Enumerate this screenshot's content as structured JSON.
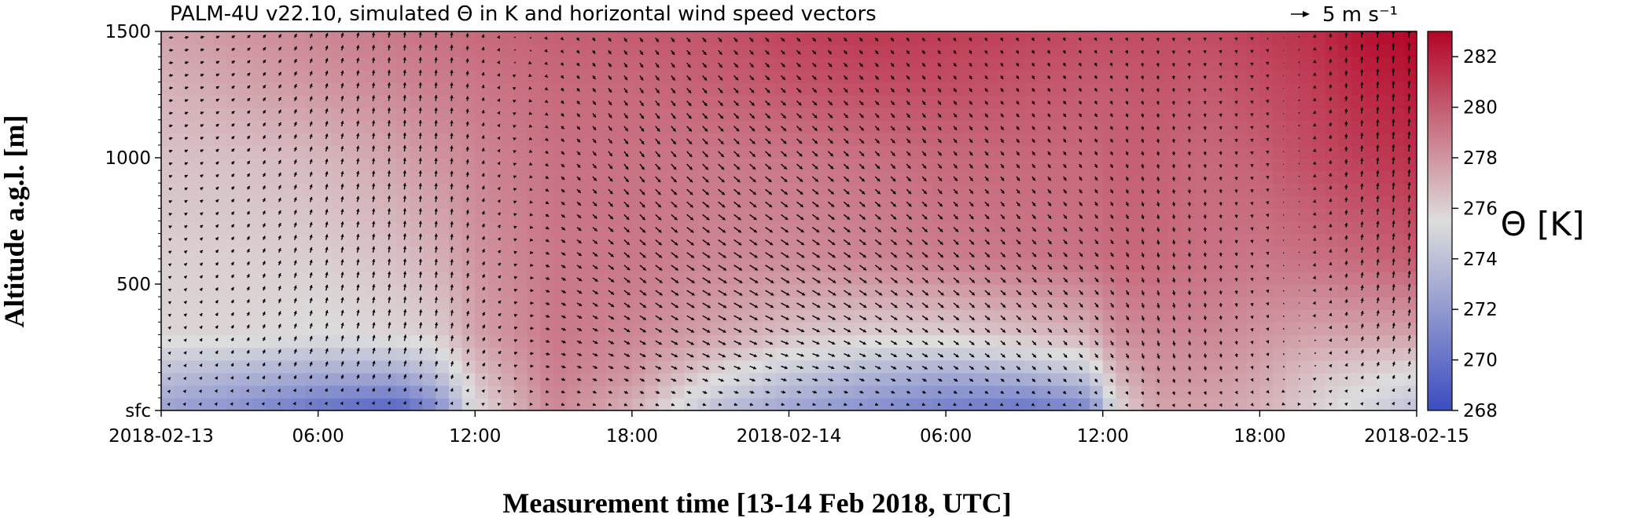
{
  "chart_data": {
    "type": "heatmap",
    "title": "PALM-4U v22.10, simulated Θ in K and horizontal wind speed vectors",
    "reference_vector": {
      "label": "5 m s⁻¹",
      "speed": 5
    },
    "xlabel": "Measurement time [13-14 Feb 2018, UTC]",
    "ylabel": "Altitude a.g.l. [m]",
    "colorbar_label": "Θ [K]",
    "colormap": "coolwarm",
    "colorbar_colors": {
      "low": "#3b4cc0",
      "mid": "#dddddd",
      "high": "#b40426"
    },
    "x_ticks": [
      "2018-02-13",
      "06:00",
      "12:00",
      "18:00",
      "2018-02-14",
      "06:00",
      "12:00",
      "18:00",
      "2018-02-15"
    ],
    "x_tick_hours": [
      0,
      6,
      12,
      18,
      24,
      30,
      36,
      42,
      48
    ],
    "xlim_hours": [
      0,
      48
    ],
    "y_ticks": [
      "sfc",
      "500",
      "1000",
      "1500"
    ],
    "y_tick_values": [
      0,
      500,
      1000,
      1500
    ],
    "ylim": [
      0,
      1500
    ],
    "colorbar_ticks": [
      "268",
      "270",
      "272",
      "274",
      "276",
      "278",
      "280",
      "282"
    ],
    "colorbar_tick_values": [
      268,
      270,
      272,
      274,
      276,
      278,
      280,
      282
    ],
    "clim": [
      268,
      283
    ],
    "theta_field": {
      "time_hours": [
        0,
        3,
        6,
        9,
        10.5,
        12,
        15,
        18,
        21,
        24,
        27,
        30,
        33,
        35.5,
        36.5,
        38,
        40,
        42,
        44,
        46,
        48
      ],
      "altitude_m": [
        0,
        150,
        300,
        600,
        1000,
        1300,
        1500
      ],
      "theta_K": [
        [
          272.5,
          271.5,
          270.0,
          269.0,
          271.0,
          275.5,
          278.5,
          277.0,
          274.0,
          272.5,
          271.5,
          270.5,
          270.0,
          271.0,
          275.5,
          277.5,
          277.5,
          277.0,
          276.0,
          275.0,
          274.0
        ],
        [
          274.0,
          273.5,
          273.0,
          273.0,
          274.0,
          276.5,
          278.8,
          278.0,
          276.0,
          274.5,
          273.5,
          273.0,
          273.5,
          274.5,
          277.0,
          278.0,
          278.0,
          277.5,
          276.5,
          276.0,
          275.5
        ],
        [
          275.8,
          275.8,
          275.5,
          275.8,
          276.0,
          277.5,
          279.0,
          278.5,
          277.5,
          276.5,
          276.0,
          276.0,
          276.5,
          277.0,
          278.2,
          278.5,
          278.5,
          278.0,
          277.5,
          277.5,
          277.5
        ],
        [
          276.0,
          276.0,
          276.0,
          276.5,
          277.0,
          278.0,
          279.0,
          279.0,
          278.5,
          278.3,
          278.5,
          278.8,
          279.0,
          279.2,
          279.5,
          279.5,
          279.2,
          279.0,
          279.2,
          279.5,
          280.0
        ],
        [
          276.5,
          276.5,
          276.8,
          277.5,
          278.0,
          278.5,
          279.2,
          279.2,
          279.0,
          279.0,
          279.2,
          279.5,
          279.5,
          279.5,
          279.8,
          279.8,
          279.5,
          279.8,
          280.5,
          281.0,
          281.5
        ],
        [
          277.0,
          277.5,
          278.0,
          278.5,
          278.8,
          279.0,
          279.5,
          279.5,
          279.8,
          280.2,
          280.5,
          280.5,
          280.2,
          280.0,
          280.0,
          280.2,
          280.0,
          280.5,
          281.0,
          281.8,
          282.3
        ],
        [
          277.5,
          278.0,
          278.5,
          279.0,
          279.2,
          279.5,
          279.8,
          280.0,
          280.2,
          280.8,
          281.2,
          281.0,
          280.8,
          280.5,
          280.5,
          280.5,
          280.5,
          281.0,
          281.5,
          282.5,
          283.0
        ]
      ]
    },
    "wind_field": {
      "time_hours": [
        0,
        6,
        9,
        11,
        12,
        15,
        18,
        21,
        24,
        30,
        36,
        38,
        40,
        42,
        44,
        46,
        48
      ],
      "altitude_m": [
        0,
        200,
        500,
        1000,
        1500
      ],
      "u_ms": [
        [
          0.3,
          0.4,
          0.5,
          0.4,
          0.5,
          1.0,
          1.0,
          1.0,
          1.0,
          0.8,
          0.6,
          0.3,
          0.5,
          0.6,
          0.6,
          0.5,
          0.4
        ],
        [
          0.6,
          0.6,
          0.5,
          0.4,
          0.6,
          1.5,
          2.0,
          2.5,
          2.5,
          1.8,
          1.0,
          0.5,
          0.3,
          0.3,
          0.4,
          0.5,
          0.4
        ],
        [
          0.8,
          0.5,
          0.3,
          0.2,
          0.5,
          1.5,
          2.2,
          3.0,
          3.0,
          2.0,
          1.2,
          0.4,
          0.2,
          0.2,
          0.2,
          0.3,
          0.3
        ],
        [
          1.2,
          0.5,
          0.2,
          0.1,
          0.3,
          1.0,
          1.5,
          2.0,
          2.0,
          1.2,
          0.8,
          0.3,
          0.2,
          0.1,
          0.1,
          0.1,
          0.2
        ],
        [
          1.5,
          0.6,
          0.2,
          0.1,
          0.2,
          0.6,
          1.0,
          1.2,
          1.2,
          0.8,
          0.6,
          0.2,
          0.1,
          0.1,
          0.1,
          0.1,
          0.1
        ]
      ],
      "v_ms": [
        [
          0.4,
          0.6,
          0.8,
          0.7,
          0.3,
          -0.3,
          -0.5,
          -0.3,
          -0.2,
          -0.3,
          -0.6,
          -0.9,
          -0.8,
          -0.5,
          0.2,
          0.5,
          0.6
        ],
        [
          0.6,
          1.8,
          2.2,
          2.0,
          1.5,
          -0.5,
          -1.0,
          -1.2,
          -0.8,
          -1.2,
          -1.5,
          -1.8,
          -1.5,
          -1.0,
          0.3,
          1.5,
          2.0
        ],
        [
          0.5,
          2.0,
          2.3,
          2.2,
          1.5,
          -0.8,
          -1.8,
          -1.8,
          -1.8,
          -1.8,
          -1.5,
          -1.8,
          -1.5,
          -1.0,
          0.5,
          2.0,
          2.5
        ],
        [
          0.3,
          1.8,
          2.2,
          2.1,
          1.5,
          -1.0,
          -2.0,
          -2.0,
          -1.8,
          -1.5,
          -1.3,
          -1.5,
          -1.3,
          -1.0,
          0.8,
          2.2,
          2.6
        ],
        [
          0.0,
          1.6,
          2.0,
          2.0,
          1.4,
          -0.8,
          -1.5,
          -1.5,
          -1.3,
          -1.2,
          -1.0,
          -1.2,
          -1.0,
          -0.8,
          1.0,
          2.3,
          2.7
        ]
      ]
    }
  }
}
